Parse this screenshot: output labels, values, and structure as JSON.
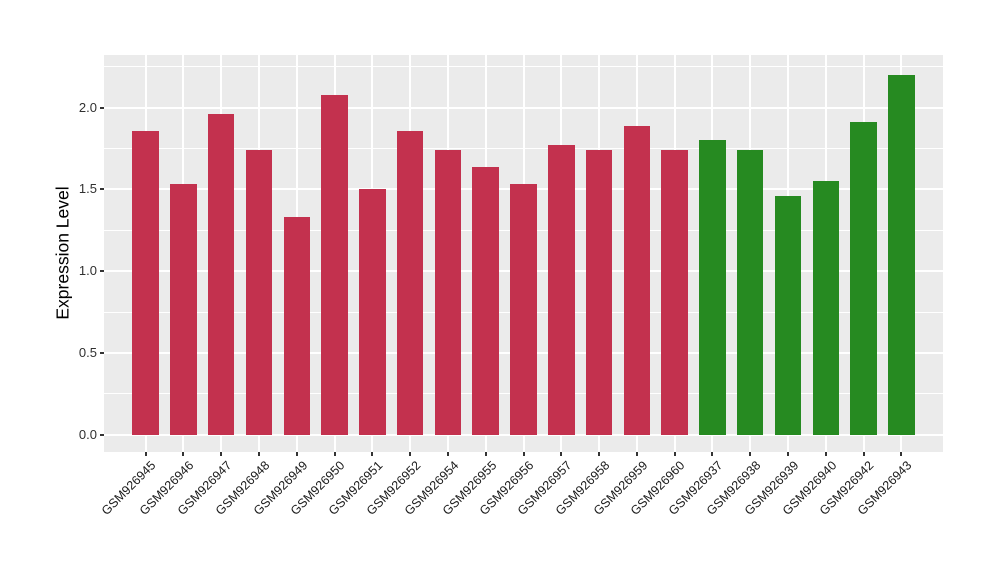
{
  "figure": {
    "background_color": "#FFFFFF",
    "panel_background_color": "#EBEBEB",
    "gridline_color": "#FFFFFF",
    "axis_tick_color": "#333333",
    "axis_text_color": "#303030"
  },
  "chart_data": {
    "type": "bar",
    "title": "",
    "xlabel": "",
    "ylabel": "Expression Level",
    "categories": [
      "GSM926945",
      "GSM926946",
      "GSM926947",
      "GSM926948",
      "GSM926949",
      "GSM926950",
      "GSM926951",
      "GSM926952",
      "GSM926954",
      "GSM926955",
      "GSM926956",
      "GSM926957",
      "GSM926958",
      "GSM926959",
      "GSM926960",
      "GSM926937",
      "GSM926938",
      "GSM926939",
      "GSM926940",
      "GSM926942",
      "GSM926943"
    ],
    "values": [
      1.86,
      1.53,
      1.96,
      1.74,
      1.33,
      2.08,
      1.5,
      1.86,
      1.74,
      1.64,
      1.53,
      1.77,
      1.74,
      1.89,
      1.74,
      1.8,
      1.74,
      1.46,
      1.55,
      1.91,
      2.2
    ],
    "bar_groups": [
      "group1",
      "group1",
      "group1",
      "group1",
      "group1",
      "group1",
      "group1",
      "group1",
      "group1",
      "group1",
      "group1",
      "group1",
      "group1",
      "group1",
      "group1",
      "group2",
      "group2",
      "group2",
      "group2",
      "group2",
      "group2"
    ],
    "group_colors": {
      "group1": "#C3314E",
      "group2": "#268A21"
    },
    "ytick_values": [
      0.0,
      0.5,
      1.0,
      1.5,
      2.0
    ],
    "ytick_labels": [
      "0.0",
      "0.5",
      "1.0",
      "1.5",
      "2.0"
    ],
    "yminor_values": [
      0.25,
      0.75,
      1.25,
      1.75,
      2.25
    ],
    "ylim": [
      -0.106,
      2.322
    ],
    "grid": "major-and-minor",
    "legend_position": "none"
  }
}
